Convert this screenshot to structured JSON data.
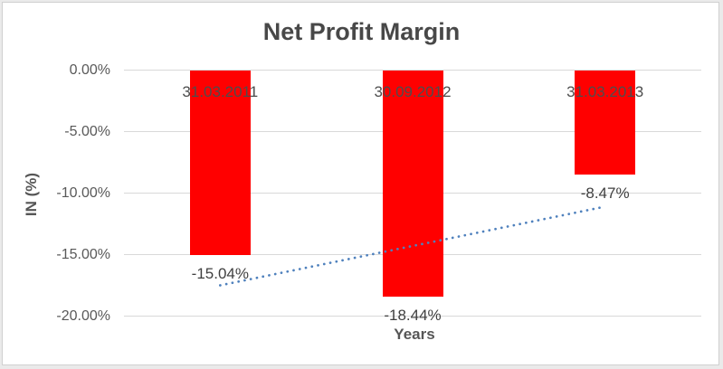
{
  "chart_data": {
    "type": "bar",
    "title": "Net Profit Margin",
    "xlabel": "Years",
    "ylabel": "IN (%)",
    "categories": [
      "31.03.2011",
      "30.09.2012",
      "31.03.2013"
    ],
    "values": [
      -15.04,
      -18.44,
      -8.47
    ],
    "data_labels": [
      "-15.04%",
      "-18.44%",
      "-8.47%"
    ],
    "ylim": [
      -20,
      0
    ],
    "yticks": [
      {
        "value": 0,
        "label": "0.00%"
      },
      {
        "value": -5,
        "label": "-5.00%"
      },
      {
        "value": -10,
        "label": "-10.00%"
      },
      {
        "value": -15,
        "label": "-15.00%"
      },
      {
        "value": -20,
        "label": "-20.00%"
      }
    ],
    "grid": "horizontal",
    "legend": "none",
    "colors": {
      "bar": "#FF0000",
      "trendline": "#4F81BD",
      "gridline": "#D9D9D9",
      "title_text": "#484848",
      "label_text": "#3F3F3F",
      "category_text": "#4D4D4D",
      "tick_text": "#595959"
    },
    "trendline": {
      "type": "linear",
      "style": "dotted",
      "color": "#4F81BD",
      "start_value": -17.5,
      "end_value": -11.1
    }
  }
}
